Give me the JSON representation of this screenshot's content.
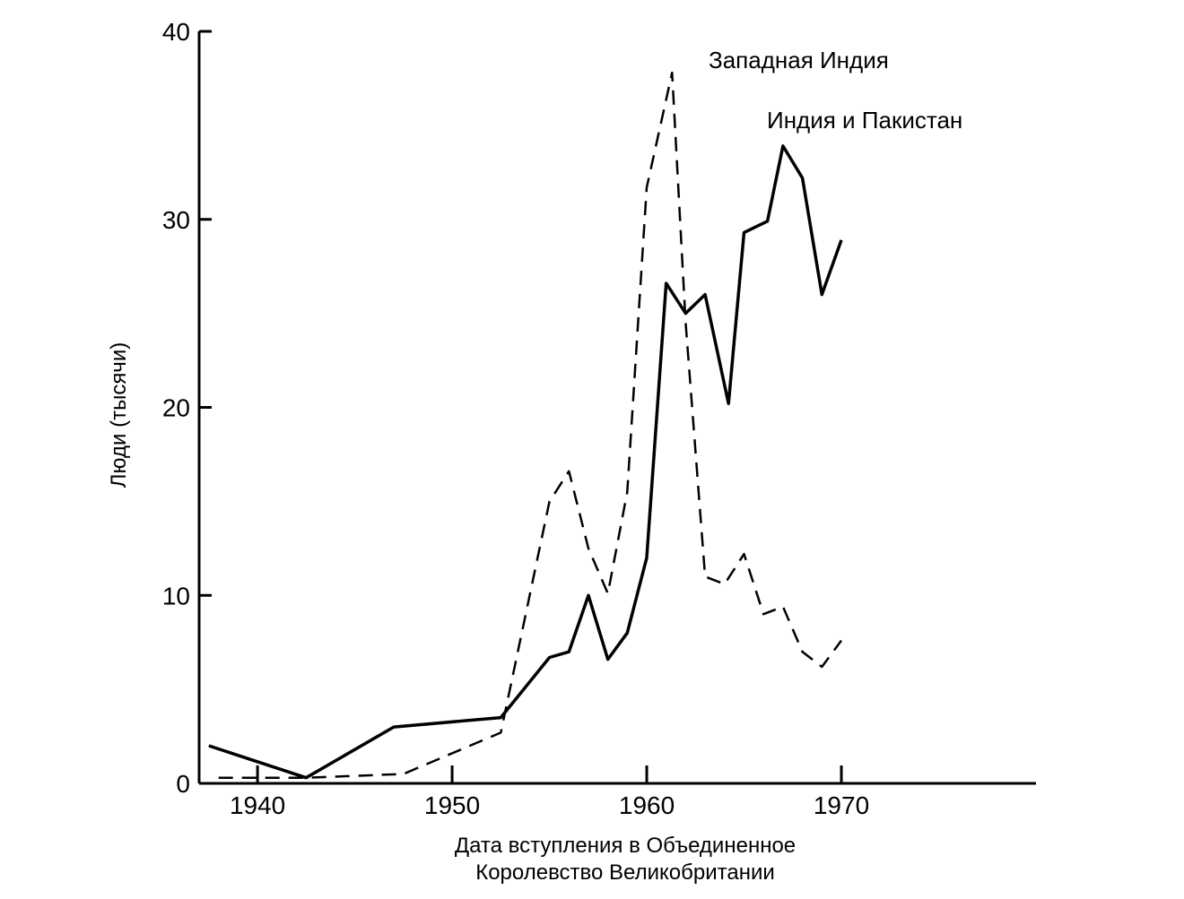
{
  "chart_data": {
    "type": "line",
    "xlabel_lines": [
      "Дата вступления в Объединенное",
      "Королевство Великобритании"
    ],
    "ylabel": "Люди (тысячи)",
    "xlim": [
      1937,
      1980
    ],
    "ylim": [
      0,
      40
    ],
    "x_ticks": [
      1940,
      1950,
      1960,
      1970
    ],
    "y_ticks": [
      0,
      10,
      20,
      30,
      40
    ],
    "grid": false,
    "series": [
      {
        "name": "Западная Индия",
        "style": "dashed",
        "color": "#000000",
        "points": [
          [
            1938,
            0.3
          ],
          [
            1942.5,
            0.3
          ],
          [
            1947.5,
            0.5
          ],
          [
            1952.5,
            2.7
          ],
          [
            1955,
            15
          ],
          [
            1956,
            16.6
          ],
          [
            1957,
            12.5
          ],
          [
            1958,
            10.1
          ],
          [
            1959,
            15.5
          ],
          [
            1960,
            31.7
          ],
          [
            1961.3,
            37.8
          ],
          [
            1962,
            24.5
          ],
          [
            1963,
            11
          ],
          [
            1964,
            10.6
          ],
          [
            1965,
            12.2
          ],
          [
            1966,
            9
          ],
          [
            1967,
            9.4
          ],
          [
            1968,
            7
          ],
          [
            1969,
            6.2
          ],
          [
            1970,
            7.6
          ]
        ]
      },
      {
        "name": "Индия и Пакистан",
        "style": "solid",
        "color": "#000000",
        "points": [
          [
            1937.5,
            2
          ],
          [
            1942.5,
            0.3
          ],
          [
            1947,
            3
          ],
          [
            1952.5,
            3.5
          ],
          [
            1955,
            6.7
          ],
          [
            1956,
            7
          ],
          [
            1957,
            10
          ],
          [
            1958,
            6.6
          ],
          [
            1959,
            8
          ],
          [
            1960,
            12
          ],
          [
            1961,
            26.6
          ],
          [
            1962,
            25
          ],
          [
            1963,
            26
          ],
          [
            1964.2,
            20.2
          ],
          [
            1965,
            29.3
          ],
          [
            1966.2,
            29.9
          ],
          [
            1967,
            33.9
          ],
          [
            1968,
            32.2
          ],
          [
            1969,
            26
          ],
          [
            1970,
            28.9
          ]
        ]
      }
    ]
  }
}
